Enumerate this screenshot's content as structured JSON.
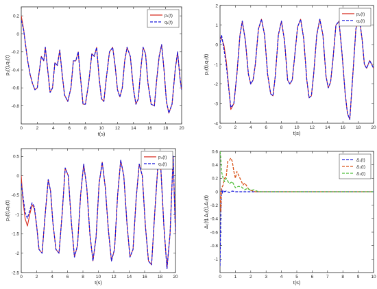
{
  "colors": {
    "red": "#d62b1f",
    "blue": "#1a1adc",
    "orange": "#d95319",
    "green": "#4fbf3a"
  },
  "chart_data": [
    {
      "type": "line",
      "xlabel": "t(s)",
      "ylabel": "p₁(t),q₁(t)",
      "xlim": [
        0,
        20
      ],
      "ylim": [
        -1,
        0.3
      ],
      "xticks": [
        "0",
        "2",
        "4",
        "6",
        "8",
        "10",
        "12",
        "14",
        "16",
        "18",
        "20"
      ],
      "yticks": [
        "0.2",
        "0",
        "-0.2",
        "-0.4",
        "-0.6",
        "-0.8"
      ],
      "ytick_values": [
        0.2,
        0,
        -0.2,
        -0.4,
        -0.6,
        -0.8
      ],
      "legend": "top-right",
      "series": [
        {
          "name": "p₁(t)",
          "color": "#d62b1f",
          "style": "solid",
          "x": [
            0,
            0.1,
            0.3,
            0.5,
            0.8,
            1.1,
            1.4,
            1.7,
            2.0,
            2.2,
            2.5,
            2.8,
            3.0,
            3.3,
            3.6,
            3.9,
            4.2,
            4.5,
            4.8,
            5.1,
            5.4,
            5.8,
            6.2,
            6.5,
            6.8,
            7.1,
            7.4,
            7.7,
            8.0,
            8.4,
            8.8,
            9.1,
            9.4,
            9.7,
            10.0,
            10.3,
            10.6,
            11.0,
            11.4,
            11.7,
            12.0,
            12.3,
            12.6,
            12.9,
            13.2,
            13.6,
            14.0,
            14.3,
            14.6,
            14.9,
            15.2,
            15.5,
            15.8,
            16.2,
            16.6,
            16.9,
            17.2,
            17.5,
            17.8,
            18.1,
            18.4,
            18.8,
            19.2,
            19.5,
            19.8,
            20.0
          ],
          "y": [
            0.2,
            0.15,
            0.05,
            -0.1,
            -0.3,
            -0.45,
            -0.55,
            -0.62,
            -0.6,
            -0.45,
            -0.25,
            -0.3,
            -0.15,
            -0.4,
            -0.65,
            -0.6,
            -0.32,
            -0.35,
            -0.18,
            -0.45,
            -0.68,
            -0.75,
            -0.6,
            -0.3,
            -0.3,
            -0.2,
            -0.5,
            -0.78,
            -0.78,
            -0.55,
            -0.22,
            -0.25,
            -0.15,
            -0.48,
            -0.72,
            -0.75,
            -0.5,
            -0.2,
            -0.15,
            -0.35,
            -0.62,
            -0.7,
            -0.6,
            -0.3,
            -0.15,
            -0.25,
            -0.62,
            -0.78,
            -0.72,
            -0.4,
            -0.15,
            -0.22,
            -0.55,
            -0.78,
            -0.8,
            -0.5,
            -0.25,
            -0.12,
            -0.4,
            -0.75,
            -0.88,
            -0.78,
            -0.4,
            -0.2,
            -0.5,
            -0.62
          ]
        },
        {
          "name": "q₁(t)",
          "color": "#1a1adc",
          "style": "dashed",
          "x": [
            0,
            0.1,
            0.3,
            0.5,
            0.8,
            1.1,
            1.4,
            1.7,
            2.0,
            2.2,
            2.5,
            2.8,
            3.0,
            3.3,
            3.6,
            3.9,
            4.2,
            4.5,
            4.8,
            5.1,
            5.4,
            5.8,
            6.2,
            6.5,
            6.8,
            7.1,
            7.4,
            7.7,
            8.0,
            8.4,
            8.8,
            9.1,
            9.4,
            9.7,
            10.0,
            10.3,
            10.6,
            11.0,
            11.4,
            11.7,
            12.0,
            12.3,
            12.6,
            12.9,
            13.2,
            13.6,
            14.0,
            14.3,
            14.6,
            14.9,
            15.2,
            15.5,
            15.8,
            16.2,
            16.6,
            16.9,
            17.2,
            17.5,
            17.8,
            18.1,
            18.4,
            18.8,
            19.2,
            19.5,
            19.8,
            20.0
          ],
          "y": [
            0.15,
            0.12,
            0.04,
            -0.1,
            -0.3,
            -0.45,
            -0.55,
            -0.62,
            -0.6,
            -0.45,
            -0.25,
            -0.3,
            -0.15,
            -0.4,
            -0.65,
            -0.6,
            -0.32,
            -0.35,
            -0.18,
            -0.45,
            -0.68,
            -0.75,
            -0.6,
            -0.3,
            -0.3,
            -0.2,
            -0.5,
            -0.78,
            -0.78,
            -0.55,
            -0.22,
            -0.25,
            -0.15,
            -0.48,
            -0.72,
            -0.75,
            -0.5,
            -0.2,
            -0.15,
            -0.35,
            -0.62,
            -0.7,
            -0.6,
            -0.3,
            -0.15,
            -0.25,
            -0.62,
            -0.78,
            -0.72,
            -0.4,
            -0.15,
            -0.22,
            -0.55,
            -0.78,
            -0.8,
            -0.5,
            -0.25,
            -0.12,
            -0.4,
            -0.75,
            -0.88,
            -0.78,
            -0.4,
            -0.2,
            -0.5,
            -0.62
          ]
        }
      ]
    },
    {
      "type": "line",
      "xlabel": "t(s)",
      "ylabel": "p₂(t),q₂(t)",
      "xlim": [
        0,
        20
      ],
      "ylim": [
        -4,
        2
      ],
      "xticks": [
        "0",
        "2",
        "4",
        "6",
        "8",
        "10",
        "12",
        "14",
        "16",
        "18",
        "20"
      ],
      "yticks": [
        "2",
        "1",
        "0",
        "-1",
        "-2",
        "-3",
        "-4"
      ],
      "ytick_values": [
        2,
        1,
        0,
        -1,
        -2,
        -3,
        -4
      ],
      "legend": "top-right",
      "series": [
        {
          "name": "p₂(t)",
          "color": "#d62b1f",
          "style": "solid",
          "x": [
            0,
            0.2,
            0.5,
            0.8,
            1.1,
            1.4,
            1.8,
            2.2,
            2.6,
            2.9,
            3.3,
            3.7,
            4.0,
            4.3,
            4.6,
            5.0,
            5.4,
            5.8,
            6.2,
            6.6,
            6.9,
            7.2,
            7.6,
            8.0,
            8.4,
            8.8,
            9.1,
            9.4,
            9.7,
            10.1,
            10.5,
            10.9,
            11.3,
            11.6,
            11.9,
            12.2,
            12.6,
            13.0,
            13.4,
            13.8,
            14.1,
            14.4,
            14.7,
            15.1,
            15.5,
            15.9,
            16.3,
            16.6,
            16.9,
            17.3,
            17.7,
            18.1,
            18.5,
            18.8,
            19.1,
            19.5,
            20.0
          ],
          "y": [
            0.4,
            0.3,
            0,
            -0.8,
            -2.0,
            -3.3,
            -3.0,
            -1.5,
            0.5,
            1.2,
            0.2,
            -1.5,
            -2.0,
            -1.8,
            -1.0,
            0.8,
            1.3,
            0.5,
            -1.5,
            -2.5,
            -2.6,
            -1.6,
            0.5,
            1.2,
            0.2,
            -1.8,
            -2.0,
            -1.8,
            -0.7,
            0.9,
            1.3,
            0.3,
            -1.8,
            -2.7,
            -2.6,
            -1.5,
            0.5,
            1.3,
            0.5,
            -1.6,
            -2.2,
            -1.9,
            -0.8,
            1.0,
            1.2,
            -0.5,
            -2.5,
            -3.5,
            -3.8,
            -1.5,
            0.8,
            1.5,
            0.3,
            -1.0,
            -1.2,
            -0.8,
            -1.2
          ]
        },
        {
          "name": "q₂(t)",
          "color": "#1a1adc",
          "style": "dashed",
          "x": [
            0,
            0.2,
            0.5,
            0.8,
            1.1,
            1.4,
            1.8,
            2.2,
            2.6,
            2.9,
            3.3,
            3.7,
            4.0,
            4.3,
            4.6,
            5.0,
            5.4,
            5.8,
            6.2,
            6.6,
            6.9,
            7.2,
            7.6,
            8.0,
            8.4,
            8.8,
            9.1,
            9.4,
            9.7,
            10.1,
            10.5,
            10.9,
            11.3,
            11.6,
            11.9,
            12.2,
            12.6,
            13.0,
            13.4,
            13.8,
            14.1,
            14.4,
            14.7,
            15.1,
            15.5,
            15.9,
            16.3,
            16.6,
            16.9,
            17.3,
            17.7,
            18.1,
            18.5,
            18.8,
            19.1,
            19.5,
            20.0
          ],
          "y": [
            0.1,
            0.5,
            -0.2,
            -1.0,
            -2.1,
            -3.2,
            -3.0,
            -1.5,
            0.5,
            1.2,
            0.2,
            -1.5,
            -2.0,
            -1.8,
            -1.0,
            0.8,
            1.3,
            0.5,
            -1.5,
            -2.5,
            -2.6,
            -1.6,
            0.5,
            1.2,
            0.2,
            -1.8,
            -2.0,
            -1.8,
            -0.7,
            0.9,
            1.3,
            0.3,
            -1.8,
            -2.7,
            -2.6,
            -1.5,
            0.5,
            1.3,
            0.5,
            -1.6,
            -2.2,
            -1.9,
            -0.8,
            1.0,
            1.2,
            -0.5,
            -2.5,
            -3.5,
            -3.8,
            -1.5,
            0.8,
            1.5,
            0.3,
            -1.0,
            -1.2,
            -0.8,
            -1.2
          ]
        }
      ]
    },
    {
      "type": "line",
      "xlabel": "t(s)",
      "ylabel": "p₃(t),q₃(t)",
      "xlim": [
        0,
        20
      ],
      "ylim": [
        -2.5,
        0.7
      ],
      "xticks": [
        "0",
        "2",
        "4",
        "6",
        "8",
        "10",
        "12",
        "14",
        "16",
        "18",
        "20"
      ],
      "yticks": [
        "0.5",
        "0",
        "-0.5",
        "-1",
        "-1.5",
        "-2",
        "-2.5"
      ],
      "ytick_values": [
        0.5,
        0,
        -0.5,
        -1,
        -1.5,
        -2,
        -2.5
      ],
      "legend": "top-right",
      "series": [
        {
          "name": "p₃(t)",
          "color": "#d62b1f",
          "style": "solid",
          "x": [
            0,
            0.2,
            0.5,
            0.8,
            1.1,
            1.4,
            1.7,
            2.0,
            2.3,
            2.7,
            3.1,
            3.5,
            3.8,
            4.1,
            4.5,
            4.9,
            5.3,
            5.7,
            6.1,
            6.5,
            6.9,
            7.3,
            7.7,
            8.1,
            8.5,
            8.9,
            9.3,
            9.7,
            10.1,
            10.5,
            10.9,
            11.3,
            11.7,
            12.1,
            12.5,
            12.9,
            13.3,
            13.7,
            14.1,
            14.5,
            14.9,
            15.3,
            15.7,
            16.1,
            16.5,
            16.9,
            17.3,
            17.7,
            18.1,
            18.5,
            18.9,
            19.3,
            19.7,
            20.0
          ],
          "y": [
            0,
            -0.6,
            -1.1,
            -1.3,
            -1.0,
            -0.75,
            -0.85,
            -1.3,
            -1.9,
            -2.0,
            -1.0,
            -0.1,
            -0.4,
            -1.2,
            -1.9,
            -2.0,
            -1.0,
            0.2,
            0.0,
            -1.2,
            -2.1,
            -1.8,
            -0.5,
            0.3,
            -0.3,
            -1.5,
            -2.2,
            -1.6,
            -0.2,
            0.35,
            -0.3,
            -1.4,
            -2.2,
            -1.9,
            -0.5,
            0.4,
            0.0,
            -1.2,
            -2.1,
            -1.9,
            -0.6,
            0.3,
            0.0,
            -1.3,
            -2.2,
            -2.3,
            -1.0,
            0.2,
            0.2,
            -1.3,
            -2.4,
            -1.5,
            0.5,
            -1.5
          ]
        },
        {
          "name": "q₃(t)",
          "color": "#1a1adc",
          "style": "dashed",
          "x": [
            0,
            0.2,
            0.5,
            0.8,
            1.1,
            1.4,
            1.7,
            2.0,
            2.3,
            2.7,
            3.1,
            3.5,
            3.8,
            4.1,
            4.5,
            4.9,
            5.3,
            5.7,
            6.1,
            6.5,
            6.9,
            7.3,
            7.7,
            8.1,
            8.5,
            8.9,
            9.3,
            9.7,
            10.1,
            10.5,
            10.9,
            11.3,
            11.7,
            12.1,
            12.5,
            12.9,
            13.3,
            13.7,
            14.1,
            14.5,
            14.9,
            15.3,
            15.7,
            16.1,
            16.5,
            16.9,
            17.3,
            17.7,
            18.1,
            18.5,
            18.9,
            19.3,
            19.7,
            20.0
          ],
          "y": [
            -0.2,
            -0.5,
            -0.95,
            -1.1,
            -0.9,
            -0.7,
            -0.8,
            -1.3,
            -1.9,
            -2.0,
            -1.0,
            -0.1,
            -0.4,
            -1.2,
            -1.9,
            -2.0,
            -1.0,
            0.2,
            0.0,
            -1.2,
            -2.1,
            -1.8,
            -0.5,
            0.3,
            -0.3,
            -1.5,
            -2.2,
            -1.6,
            -0.2,
            0.35,
            -0.3,
            -1.4,
            -2.2,
            -1.9,
            -0.5,
            0.4,
            0.0,
            -1.2,
            -2.1,
            -1.9,
            -0.6,
            0.3,
            0.0,
            -1.3,
            -2.2,
            -2.3,
            -1.0,
            0.2,
            0.2,
            -1.3,
            -2.4,
            -1.5,
            0.5,
            -1.5
          ]
        }
      ]
    },
    {
      "type": "line",
      "xlabel": "t(s)",
      "ylabel": "Δ₁(t),Δ₂(t),Δ₃(t)",
      "xlim": [
        0,
        10
      ],
      "ylim": [
        -1.2,
        0.6
      ],
      "xticks": [
        "0",
        "1",
        "2",
        "3",
        "4",
        "5",
        "6",
        "7",
        "8",
        "9",
        "10"
      ],
      "yticks": [
        "0.6",
        "0.4",
        "0.2",
        "0",
        "-0.2",
        "-0.4",
        "-0.6",
        "-0.8",
        "-1"
      ],
      "ytick_values": [
        0.6,
        0.4,
        0.2,
        0,
        -0.2,
        -0.4,
        -0.6,
        -0.8,
        -1
      ],
      "legend": "top-right",
      "series": [
        {
          "name": "Δ₁(t)",
          "color": "#1a1adc",
          "style": "dashed",
          "x": [
            0,
            0.03,
            0.06,
            0.1,
            0.15,
            0.2,
            0.3,
            0.4,
            0.6,
            0.8,
            1.0,
            1.5,
            2.0,
            3.0,
            5.0,
            10.0
          ],
          "y": [
            -1.1,
            -0.6,
            -0.3,
            0.05,
            -0.02,
            0.02,
            0.0,
            0.01,
            -0.01,
            0.01,
            0.0,
            0.0,
            0.0,
            0.0,
            0.0,
            0.0
          ]
        },
        {
          "name": "Δ₂(t)",
          "color": "#d95319",
          "style": "dashed",
          "x": [
            0,
            0.05,
            0.1,
            0.2,
            0.3,
            0.4,
            0.5,
            0.6,
            0.7,
            0.8,
            0.9,
            1.0,
            1.1,
            1.2,
            1.3,
            1.4,
            1.5,
            1.6,
            1.7,
            1.8,
            1.9,
            2.0,
            2.3,
            3.0,
            10.0
          ],
          "y": [
            0.0,
            -0.3,
            0.05,
            0.1,
            0.2,
            0.22,
            0.45,
            0.46,
            0.5,
            0.45,
            0.3,
            0.2,
            0.3,
            0.25,
            0.2,
            0.15,
            0.1,
            0.13,
            0.1,
            0.06,
            0.03,
            0.02,
            0.0,
            0.0,
            0.0
          ]
        },
        {
          "name": "Δ₃(t)",
          "color": "#4fbf3a",
          "style": "dashed",
          "x": [
            0,
            0.05,
            0.1,
            0.2,
            0.3,
            0.4,
            0.6,
            0.8,
            1.0,
            1.2,
            1.4,
            1.6,
            1.8,
            2.0,
            2.2,
            2.5,
            3.0,
            10.0
          ],
          "y": [
            0.6,
            0.5,
            0.3,
            0.2,
            0.15,
            0.2,
            0.12,
            0.15,
            0.06,
            0.08,
            0.07,
            0.03,
            0.05,
            0.02,
            0.03,
            0.0,
            0.0,
            0.0
          ]
        }
      ]
    }
  ]
}
